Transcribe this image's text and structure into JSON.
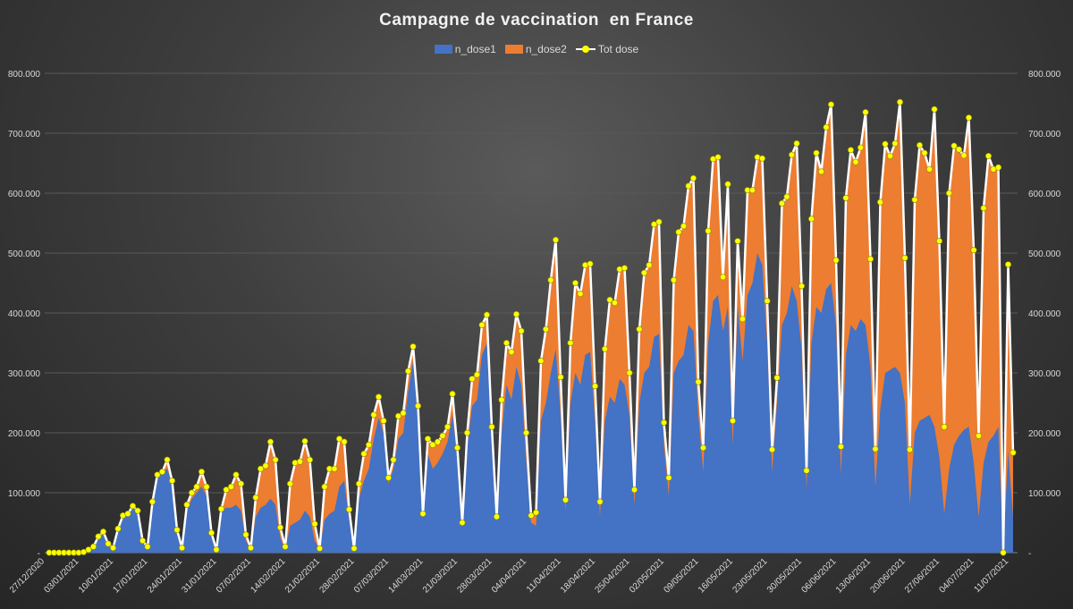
{
  "chart_data": {
    "type": "area+line",
    "title": "Campagne de vaccination  en France",
    "legend": [
      "n_dose1",
      "n_dose2",
      "Tot dose"
    ],
    "colors": {
      "n_dose1": "#4472C4",
      "n_dose2": "#ED7D31",
      "tot_line": "#FFFFFF",
      "tot_marker": "#FFFF00",
      "grid": "#595959",
      "text": "#D9D9D9"
    },
    "ylim": [
      0,
      800000
    ],
    "yticks": [
      "-",
      "100.000",
      "200.000",
      "300.000",
      "400.000",
      "500.000",
      "600.000",
      "700.000",
      "800.000"
    ],
    "xtick_labels": [
      "27/12/2020",
      "03/01/2021",
      "10/01/2021",
      "17/01/2021",
      "24/01/2021",
      "31/01/2021",
      "07/02/2021",
      "14/02/2021",
      "21/02/2021",
      "28/02/2021",
      "07/03/2021",
      "14/03/2021",
      "21/03/2021",
      "28/03/2021",
      "04/04/2021",
      "11/04/2021",
      "18/04/2021",
      "25/04/2021",
      "02/05/2021",
      "09/05/2021",
      "16/05/2021",
      "23/05/2021",
      "30/05/2021",
      "06/06/2021",
      "13/06/2021",
      "20/06/2021",
      "27/06/2021",
      "04/07/2021",
      "11/07/2021"
    ],
    "start_date": "27/12/2020",
    "end_date": "12/07/2021",
    "total": [
      0,
      0,
      0,
      0,
      0,
      0,
      0,
      1000,
      5000,
      10000,
      27000,
      35000,
      15000,
      8000,
      40000,
      62000,
      65000,
      78000,
      70000,
      20000,
      10000,
      85000,
      130000,
      135000,
      155000,
      120000,
      38000,
      8000,
      80000,
      100000,
      110000,
      135000,
      110000,
      33000,
      5000,
      73000,
      105000,
      110000,
      130000,
      115000,
      30000,
      8000,
      92000,
      140000,
      145000,
      185000,
      155000,
      42000,
      10000,
      115000,
      150000,
      152000,
      186000,
      155000,
      48000,
      7000,
      110000,
      140000,
      140000,
      190000,
      185000,
      72000,
      7000,
      115000,
      165000,
      180000,
      230000,
      260000,
      220000,
      125000,
      155000,
      228000,
      233000,
      303000,
      344000,
      245000,
      65000,
      190000,
      180000,
      185000,
      195000,
      210000,
      265000,
      175000,
      50000,
      200000,
      290000,
      297000,
      380000,
      397000,
      210000,
      60000,
      255000,
      350000,
      335000,
      398000,
      370000,
      200000,
      62000,
      67000,
      320000,
      373000,
      455000,
      522000,
      293000,
      88000,
      350000,
      450000,
      432000,
      480000,
      482000,
      278000,
      85000,
      340000,
      422000,
      417000,
      473000,
      475000,
      300000,
      105000,
      373000,
      467000,
      480000,
      548000,
      552000,
      217000,
      125000,
      455000,
      535000,
      545000,
      612000,
      625000,
      285000,
      175000,
      537000,
      657000,
      660000,
      460000,
      615000,
      220000,
      520000,
      390000,
      605000,
      605000,
      660000,
      658000,
      420000,
      172000,
      292000,
      583000,
      594000,
      664000,
      683000,
      445000,
      137000,
      557000,
      667000,
      636000,
      710000,
      748000,
      488000,
      177000,
      592000,
      672000,
      652000,
      676000,
      735000,
      490000,
      173000,
      585000,
      682000,
      662000,
      683000,
      752000,
      492000,
      172000,
      589000,
      680000,
      667000,
      640000,
      740000,
      520000,
      210000,
      600000,
      679000,
      673000,
      663000,
      726000,
      505000,
      195000,
      575000,
      662000,
      640000,
      643000,
      0,
      481000,
      167000
    ],
    "dose1": [
      0,
      0,
      0,
      0,
      0,
      0,
      0,
      1000,
      5000,
      10000,
      27000,
      35000,
      15000,
      8000,
      40000,
      62000,
      65000,
      78000,
      70000,
      20000,
      10000,
      85000,
      130000,
      135000,
      140000,
      115000,
      35000,
      8000,
      70000,
      90000,
      100000,
      110000,
      95000,
      25000,
      5000,
      70000,
      75000,
      75000,
      80000,
      70000,
      20000,
      5000,
      60000,
      75000,
      80000,
      90000,
      80000,
      25000,
      5000,
      45000,
      50000,
      55000,
      70000,
      60000,
      20000,
      5000,
      55000,
      65000,
      70000,
      110000,
      120000,
      55000,
      5000,
      90000,
      120000,
      140000,
      190000,
      225000,
      200000,
      115000,
      140000,
      190000,
      200000,
      270000,
      320000,
      220000,
      60000,
      165000,
      140000,
      150000,
      165000,
      185000,
      230000,
      160000,
      45000,
      175000,
      245000,
      255000,
      330000,
      350000,
      190000,
      55000,
      200000,
      280000,
      255000,
      310000,
      280000,
      155000,
      50000,
      45000,
      220000,
      250000,
      300000,
      340000,
      230000,
      70000,
      250000,
      300000,
      280000,
      330000,
      335000,
      220000,
      60000,
      220000,
      260000,
      250000,
      290000,
      280000,
      230000,
      80000,
      250000,
      300000,
      310000,
      360000,
      365000,
      180000,
      95000,
      300000,
      320000,
      330000,
      380000,
      370000,
      230000,
      135000,
      350000,
      420000,
      430000,
      370000,
      410000,
      180000,
      410000,
      320000,
      430000,
      450000,
      500000,
      480000,
      350000,
      135000,
      250000,
      380000,
      400000,
      445000,
      420000,
      340000,
      105000,
      350000,
      410000,
      400000,
      440000,
      450000,
      380000,
      130000,
      330000,
      380000,
      370000,
      390000,
      380000,
      310000,
      110000,
      240000,
      300000,
      305000,
      310000,
      300000,
      250000,
      80000,
      200000,
      220000,
      225000,
      230000,
      210000,
      160000,
      65000,
      140000,
      180000,
      195000,
      205000,
      210000,
      150000,
      60000,
      150000,
      185000,
      195000,
      210000,
      0,
      170000,
      60000
    ]
  }
}
